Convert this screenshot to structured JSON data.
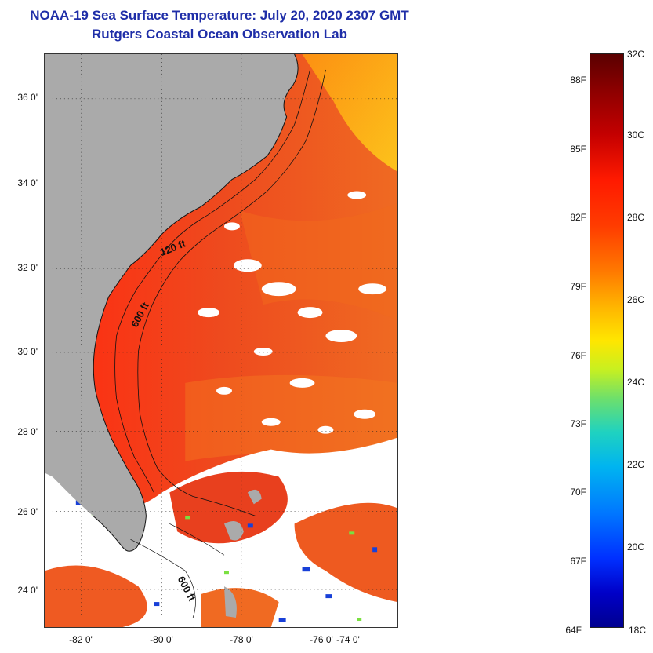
{
  "title": {
    "line1": "NOAA-19 Sea Surface Temperature:  July 20, 2020 2307 GMT",
    "line2": "Rutgers Coastal Ocean Observation Lab"
  },
  "map": {
    "lat_labels": [
      "36 0'",
      "34 0'",
      "32 0'",
      "30 0'",
      "28 0'",
      "26 0'",
      "24 0'"
    ],
    "lon_labels": [
      "-82 0'",
      "-80 0'",
      "-78 0'",
      "-76 0'",
      "-74 0'"
    ],
    "contour_labels": [
      "120 ft",
      "600 ft",
      "600 ft"
    ],
    "colors": {
      "land": "#aaaaaa",
      "cloud": "#ffffff",
      "warm_water": "#e8401e",
      "hot_water": "#ff2a10",
      "cool_water": "#ff8a00",
      "coast_line": "#111111"
    }
  },
  "colorbar": {
    "celsius_labels": [
      "32C",
      "30C",
      "28C",
      "26C",
      "24C",
      "22C",
      "20C",
      "18C"
    ],
    "fahrenheit_labels": [
      "88F",
      "85F",
      "82F",
      "79F",
      "76F",
      "73F",
      "70F",
      "67F",
      "64F"
    ],
    "range_c": [
      18,
      32
    ],
    "range_f": [
      64,
      88
    ]
  }
}
